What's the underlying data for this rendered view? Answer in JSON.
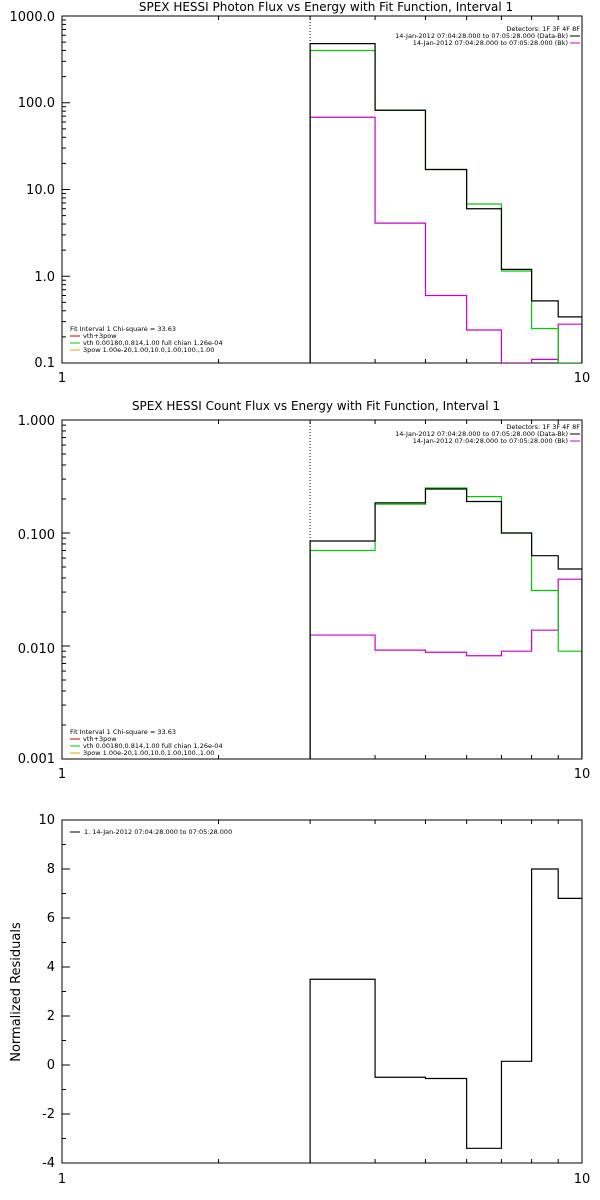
{
  "chart_data": [
    {
      "type": "line",
      "step": true,
      "title": "SPEX HESSI Photon Flux vs Energy with Fit Function, Interval 1",
      "xscale": "log",
      "yscale": "log",
      "xlim": [
        1,
        10
      ],
      "ylim": [
        0.1,
        1000
      ],
      "x_ticks": [
        "1",
        "10"
      ],
      "y_ticks": [
        "0.1",
        "1.0",
        "10.0",
        "100.0",
        "1000.0"
      ],
      "vline_x": 3,
      "legend_top_right": [
        "Detectors: 1F 3F 4F 8F",
        "14-Jan-2012 07:04:28.000 to 07:05:28.000 (Data-Bk)",
        "14-Jan-2012 07:04:28.000 to 07:05:28.000 (Bk)"
      ],
      "legend_bottom_left": [
        "Fit Interval 1   Chi-square = 33.63",
        "vth+3pow",
        "vth 0.00180,0.814,1.00  full chian 1.26e-04",
        "3pow 1.00e-20,1.00,10.0,1.00,100.,1.00"
      ],
      "bin_edges": [
        3,
        4,
        5,
        6,
        7,
        8,
        9,
        10
      ],
      "series": [
        {
          "name": "Data-Bk",
          "color": "#000000",
          "values": [
            480,
            82,
            17,
            6,
            1.2,
            0.52,
            0.34
          ]
        },
        {
          "name": "vth+3pow",
          "color": "#00cc00",
          "values": [
            400,
            82,
            17,
            6.8,
            1.15,
            0.25,
            0.028
          ]
        },
        {
          "name": "Bk",
          "color": "#cc00cc",
          "values": [
            68,
            4.1,
            0.6,
            0.24,
            0.095,
            0.11,
            0.28
          ]
        }
      ]
    },
    {
      "type": "line",
      "step": true,
      "title": "SPEX HESSI Count Flux vs Energy with Fit Function, Interval 1",
      "xscale": "log",
      "yscale": "log",
      "xlim": [
        1,
        10
      ],
      "ylim": [
        0.001,
        1
      ],
      "x_ticks": [
        "1",
        "10"
      ],
      "y_ticks": [
        "0.001",
        "0.010",
        "0.100",
        "1.000"
      ],
      "vline_x": 3,
      "legend_top_right": [
        "Detectors: 1F 3F 4F 8F",
        "14-Jan-2012 07:04:28.000 to 07:05:28.000 (Data-Bk)",
        "14-Jan-2012 07:04:28.000 to 07:05:28.000 (Bk)"
      ],
      "legend_bottom_left": [
        "Fit Interval 1   Chi-square = 33.63",
        "vth+3pow",
        "vth 0.00180,0.814,1.00  full chian 1.26e-04",
        "3pow 1.00e-20,1.00,10.0,1.00,100.,1.00"
      ],
      "bin_edges": [
        3,
        4,
        5,
        6,
        7,
        8,
        9,
        10
      ],
      "series": [
        {
          "name": "Data-Bk",
          "color": "#000000",
          "values": [
            0.085,
            0.185,
            0.245,
            0.19,
            0.1,
            0.063,
            0.048
          ]
        },
        {
          "name": "vth+3pow",
          "color": "#00cc00",
          "values": [
            0.07,
            0.18,
            0.25,
            0.21,
            0.1,
            0.031,
            0.009
          ]
        },
        {
          "name": "Bk",
          "color": "#cc00cc",
          "values": [
            0.0125,
            0.0092,
            0.0088,
            0.0082,
            0.009,
            0.0138,
            0.039
          ]
        }
      ]
    },
    {
      "type": "line",
      "step": true,
      "xscale": "log",
      "yscale": "linear",
      "xlim": [
        1,
        10
      ],
      "ylim": [
        -4,
        10
      ],
      "x_ticks": [
        "1",
        "10"
      ],
      "y_ticks": [
        "-4",
        "-2",
        "0",
        "2",
        "4",
        "6",
        "8",
        "10"
      ],
      "ylabel": "Normalized Residuals",
      "legend_top_left": [
        "1. 14-Jan-2012 07:04:28.000 to 07:05:28.000"
      ],
      "bin_edges": [
        3,
        4,
        5,
        6,
        7,
        8,
        9,
        10
      ],
      "series": [
        {
          "color": "#000000",
          "values": [
            3.5,
            -0.5,
            -0.55,
            -3.4,
            0.15,
            8.0,
            6.8
          ]
        }
      ]
    }
  ]
}
